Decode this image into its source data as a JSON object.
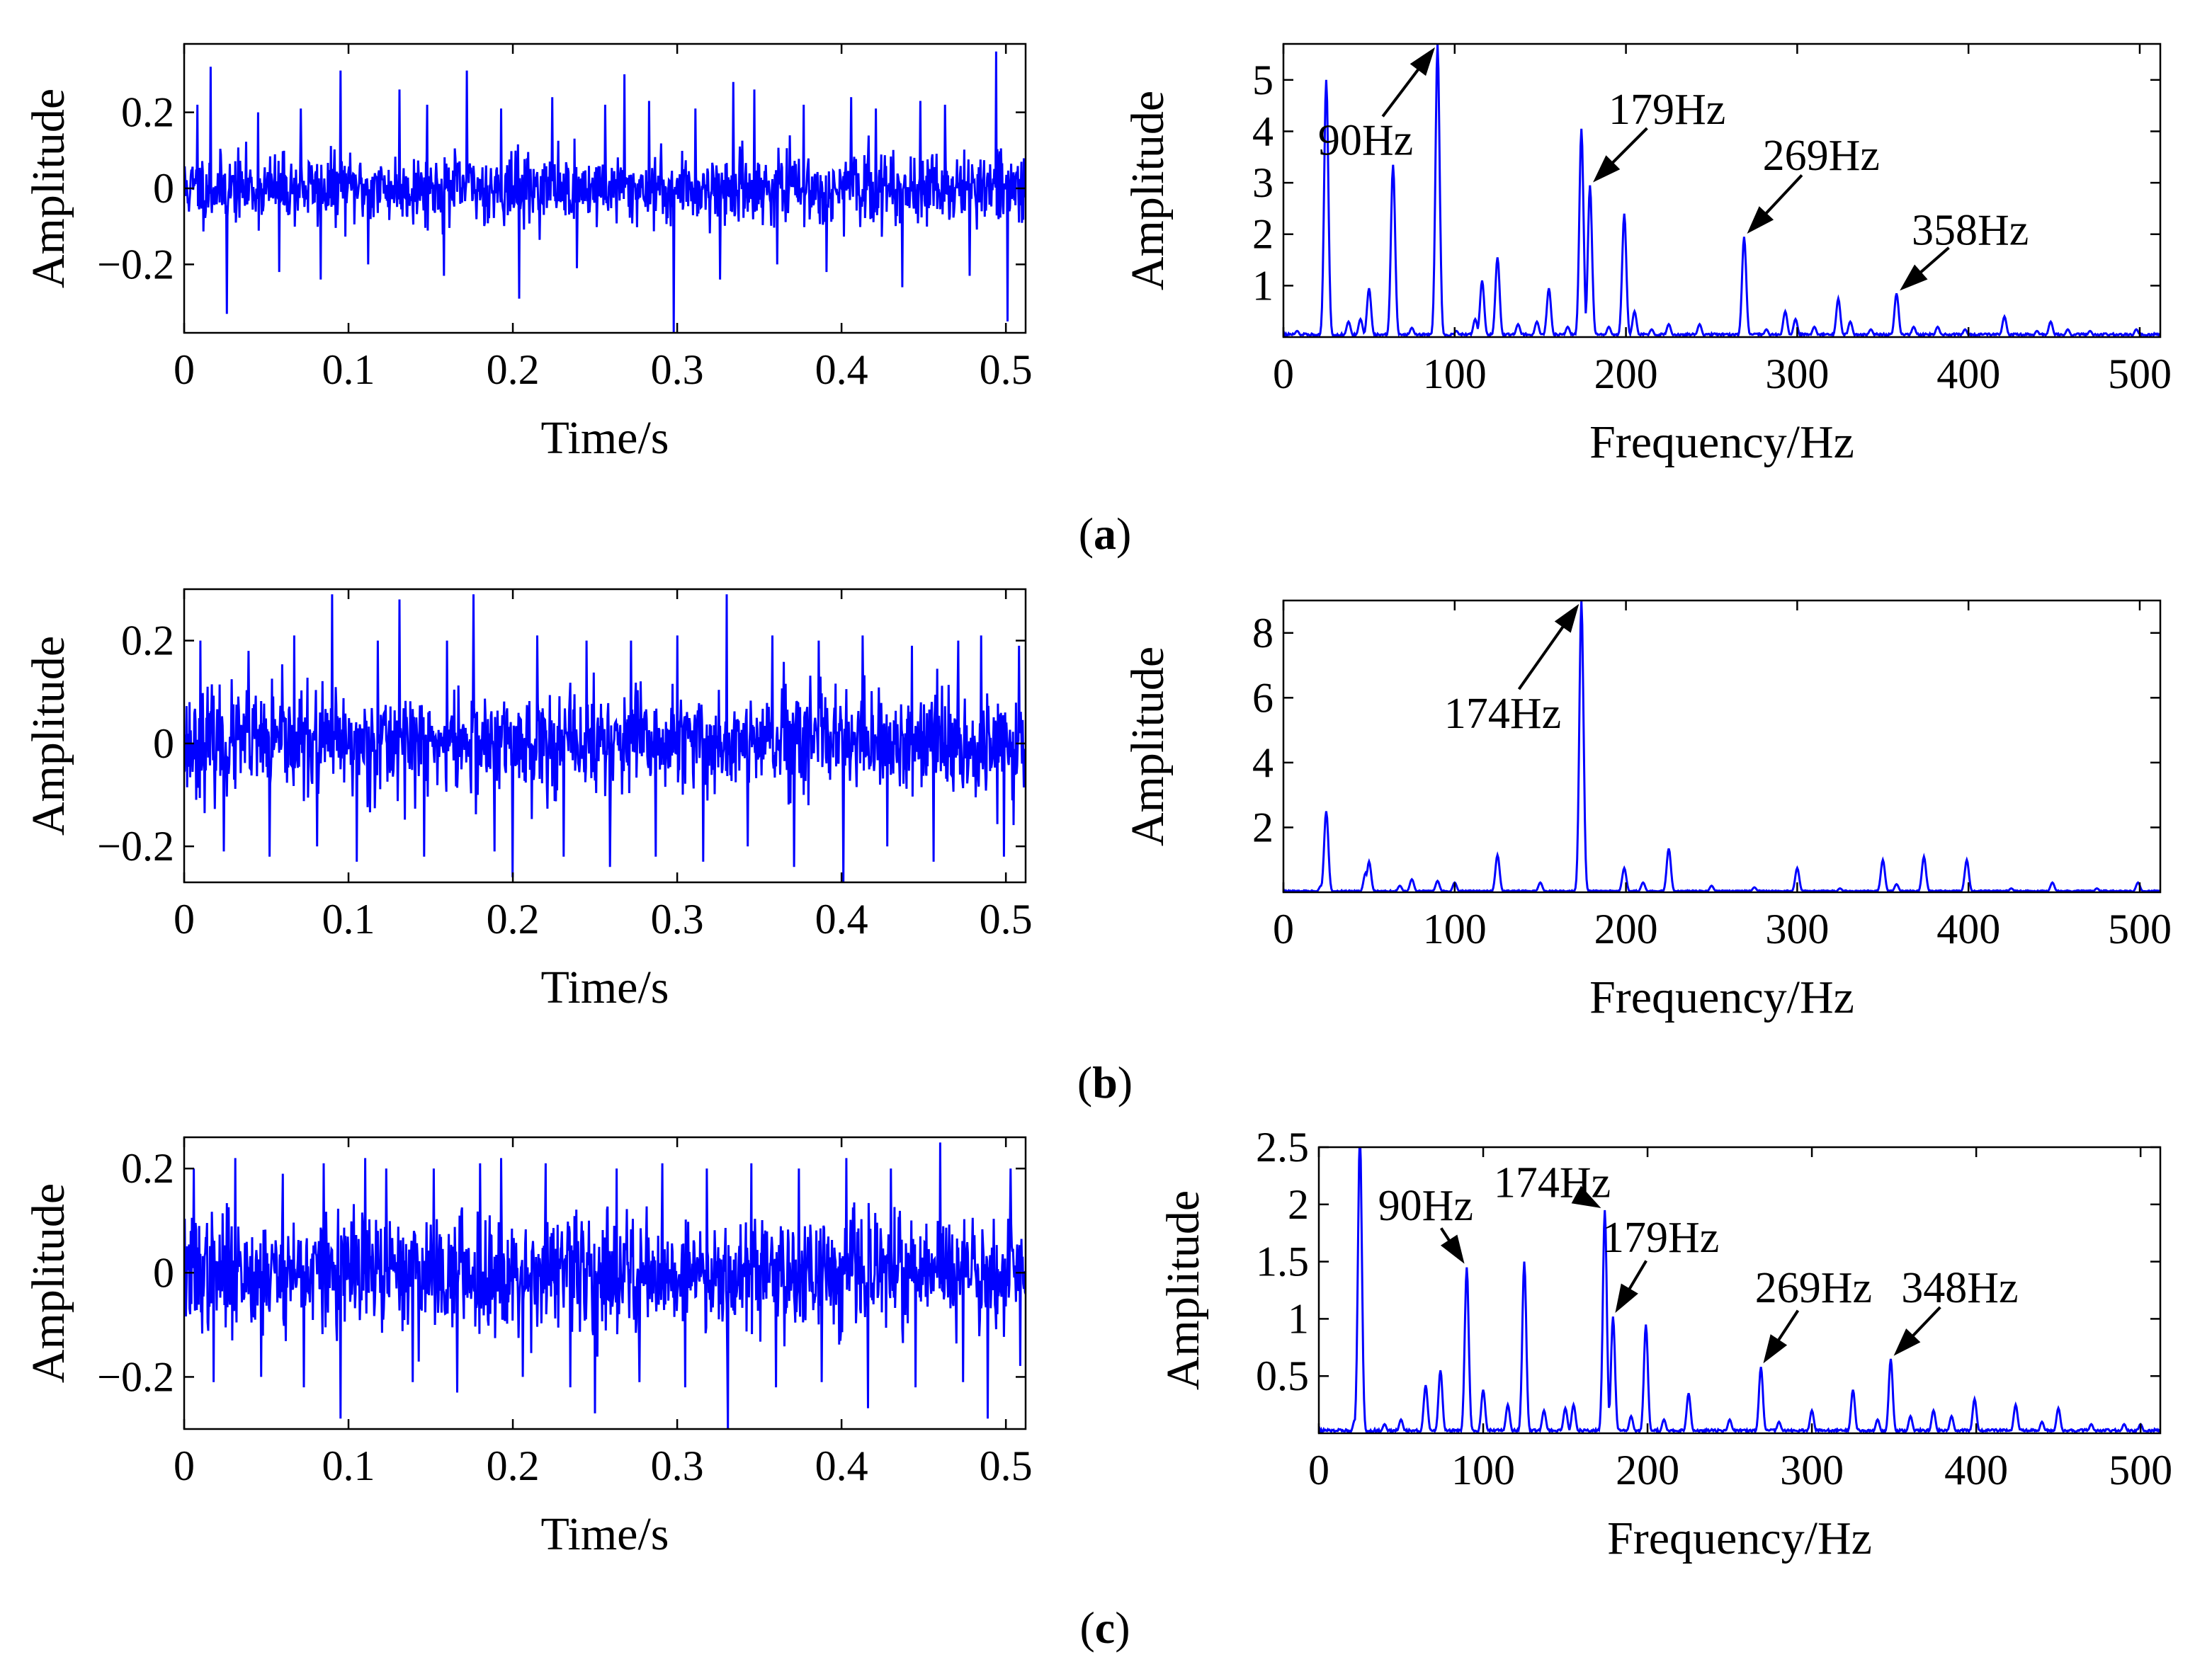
{
  "colors": {
    "signal": "#0000ff",
    "axis": "#000000"
  },
  "chart_data": [
    {
      "id": "a-time",
      "panel": "a",
      "type": "line",
      "title": "",
      "xlabel": "Time/s",
      "ylabel": "Amplitude",
      "xlim": [
        0,
        0.512
      ],
      "ylim": [
        -0.38,
        0.38
      ],
      "xticks": [
        0,
        0.1,
        0.2,
        0.3,
        0.4,
        0.5
      ],
      "xtick_labels": [
        "0",
        "0.1",
        "0.2",
        "0.3",
        "0.4",
        "0.5"
      ],
      "yticks": [
        -0.2,
        0,
        0.2
      ],
      "ytick_labels": [
        "−0.2",
        "0",
        "0.2"
      ],
      "noise": {
        "duration": 0.512,
        "n_points": 1400,
        "std": 0.045,
        "seed": 11,
        "spike_times": [
          0.008,
          0.016,
          0.026,
          0.045,
          0.058,
          0.071,
          0.083,
          0.095,
          0.112,
          0.131,
          0.148,
          0.158,
          0.172,
          0.193,
          0.204,
          0.224,
          0.239,
          0.256,
          0.268,
          0.283,
          0.298,
          0.311,
          0.326,
          0.334,
          0.347,
          0.361,
          0.377,
          0.391,
          0.406,
          0.421,
          0.437,
          0.448,
          0.463,
          0.478,
          0.494,
          0.501
        ],
        "spike_values": [
          0.22,
          0.32,
          -0.33,
          0.2,
          -0.22,
          0.21,
          -0.24,
          0.31,
          -0.2,
          0.26,
          0.22,
          -0.23,
          0.31,
          0.21,
          -0.29,
          0.24,
          -0.21,
          0.22,
          0.3,
          0.23,
          -0.38,
          0.21,
          -0.24,
          0.28,
          0.26,
          -0.2,
          0.22,
          -0.22,
          0.24,
          0.21,
          -0.26,
          0.23,
          0.22,
          -0.23,
          0.36,
          -0.35
        ]
      }
    },
    {
      "id": "a-freq",
      "panel": "a",
      "type": "line",
      "title": "",
      "xlabel": "Frequency/Hz",
      "ylabel": "Amplitude",
      "xlim": [
        0,
        512
      ],
      "ylim": [
        0,
        5.7
      ],
      "xticks": [
        0,
        100,
        200,
        300,
        400,
        500
      ],
      "xtick_labels": [
        "0",
        "100",
        "200",
        "300",
        "400",
        "500"
      ],
      "yticks": [
        1,
        2,
        3,
        4,
        5
      ],
      "ytick_labels": [
        "1",
        "2",
        "3",
        "4",
        "5"
      ],
      "spectrum": {
        "baseline": 0.06,
        "width": 1.2,
        "peaks": [
          [
            8,
            0.12
          ],
          [
            25,
            5.0
          ],
          [
            38,
            0.3
          ],
          [
            45,
            0.35
          ],
          [
            50,
            0.95
          ],
          [
            64,
            3.35
          ],
          [
            75,
            0.18
          ],
          [
            90,
            5.7
          ],
          [
            101,
            0.12
          ],
          [
            112,
            0.35
          ],
          [
            116,
            1.1
          ],
          [
            125,
            1.55
          ],
          [
            137,
            0.25
          ],
          [
            148,
            0.3
          ],
          [
            155,
            0.95
          ],
          [
            166,
            0.2
          ],
          [
            174,
            4.05
          ],
          [
            179,
            2.95
          ],
          [
            190,
            0.2
          ],
          [
            199,
            2.4
          ],
          [
            205,
            0.5
          ],
          [
            215,
            0.15
          ],
          [
            225,
            0.25
          ],
          [
            243,
            0.25
          ],
          [
            269,
            1.95
          ],
          [
            282,
            0.15
          ],
          [
            293,
            0.5
          ],
          [
            299,
            0.35
          ],
          [
            310,
            0.2
          ],
          [
            324,
            0.75
          ],
          [
            331,
            0.3
          ],
          [
            343,
            0.15
          ],
          [
            358,
            0.85
          ],
          [
            368,
            0.2
          ],
          [
            382,
            0.2
          ],
          [
            398,
            0.15
          ],
          [
            421,
            0.4
          ],
          [
            440,
            0.12
          ],
          [
            448,
            0.3
          ],
          [
            458,
            0.15
          ],
          [
            471,
            0.12
          ],
          [
            498,
            0.15
          ]
        ]
      },
      "annotations": [
        {
          "text": "90Hz",
          "x": 90,
          "y": 5.7,
          "tx": 48,
          "ty": 3.85
        },
        {
          "text": "179Hz",
          "x": 179,
          "y": 2.95,
          "tx": 224,
          "ty": 4.45
        },
        {
          "text": "269Hz",
          "x": 269,
          "y": 1.95,
          "tx": 314,
          "ty": 3.55
        },
        {
          "text": "358Hz",
          "x": 358,
          "y": 0.85,
          "tx": 401,
          "ty": 2.1
        }
      ]
    },
    {
      "id": "b-time",
      "panel": "b",
      "type": "line",
      "title": "",
      "xlabel": "Time/s",
      "ylabel": "Amplitude",
      "xlim": [
        0,
        0.512
      ],
      "ylim": [
        -0.27,
        0.3
      ],
      "xticks": [
        0,
        0.1,
        0.2,
        0.3,
        0.4,
        0.5
      ],
      "xtick_labels": [
        "0",
        "0.1",
        "0.2",
        "0.3",
        "0.4",
        "0.5"
      ],
      "yticks": [
        -0.2,
        0,
        0.2
      ],
      "ytick_labels": [
        "−0.2",
        "0",
        "0.2"
      ],
      "noise": {
        "duration": 0.512,
        "n_points": 1400,
        "std": 0.05,
        "seed": 23,
        "spike_times": [
          0.01,
          0.024,
          0.039,
          0.052,
          0.067,
          0.081,
          0.09,
          0.105,
          0.118,
          0.131,
          0.146,
          0.16,
          0.176,
          0.189,
          0.2,
          0.215,
          0.231,
          0.245,
          0.259,
          0.272,
          0.287,
          0.3,
          0.316,
          0.33,
          0.343,
          0.358,
          0.371,
          0.386,
          0.401,
          0.413,
          0.428,
          0.443,
          0.456,
          0.471,
          0.485,
          0.499,
          0.508
        ],
        "spike_values": [
          0.2,
          -0.21,
          0.18,
          -0.22,
          0.21,
          -0.2,
          0.29,
          -0.23,
          0.2,
          0.28,
          -0.22,
          0.2,
          0.29,
          -0.21,
          -0.26,
          0.21,
          -0.22,
          0.2,
          -0.24,
          0.2,
          -0.22,
          0.21,
          -0.23,
          0.29,
          -0.2,
          0.21,
          -0.24,
          0.2,
          -0.27,
          0.21,
          -0.2,
          0.19,
          -0.23,
          0.2,
          0.21,
          -0.22,
          0.19
        ]
      }
    },
    {
      "id": "b-freq",
      "panel": "b",
      "type": "line",
      "title": "",
      "xlabel": "Frequency/Hz",
      "ylabel": "Amplitude",
      "xlim": [
        0,
        512
      ],
      "ylim": [
        0,
        9
      ],
      "xticks": [
        0,
        100,
        200,
        300,
        400,
        500
      ],
      "xtick_labels": [
        "0",
        "100",
        "200",
        "300",
        "400",
        "500"
      ],
      "yticks": [
        2,
        4,
        6,
        8
      ],
      "ytick_labels": [
        "2",
        "4",
        "6",
        "8"
      ],
      "spectrum": {
        "baseline": 0.05,
        "width": 1.2,
        "peaks": [
          [
            22,
            0.2
          ],
          [
            25,
            2.5
          ],
          [
            48,
            0.6
          ],
          [
            50,
            0.95
          ],
          [
            68,
            0.2
          ],
          [
            75,
            0.4
          ],
          [
            90,
            0.35
          ],
          [
            100,
            0.3
          ],
          [
            125,
            1.15
          ],
          [
            150,
            0.3
          ],
          [
            174,
            9.0
          ],
          [
            199,
            0.75
          ],
          [
            210,
            0.3
          ],
          [
            225,
            1.35
          ],
          [
            250,
            0.2
          ],
          [
            275,
            0.15
          ],
          [
            300,
            0.75
          ],
          [
            325,
            0.12
          ],
          [
            350,
            1.0
          ],
          [
            358,
            0.25
          ],
          [
            374,
            1.1
          ],
          [
            399,
            1.0
          ],
          [
            425,
            0.12
          ],
          [
            449,
            0.3
          ],
          [
            475,
            0.12
          ],
          [
            499,
            0.3
          ]
        ]
      },
      "annotations": [
        {
          "text": "174Hz",
          "x": 174,
          "y": 9.0,
          "tx": 128,
          "ty": 5.55
        }
      ]
    },
    {
      "id": "c-time",
      "panel": "c",
      "type": "line",
      "title": "",
      "xlabel": "Time/s",
      "ylabel": "Amplitude",
      "xlim": [
        0,
        0.512
      ],
      "ylim": [
        -0.3,
        0.26
      ],
      "xticks": [
        0,
        0.1,
        0.2,
        0.3,
        0.4,
        0.5
      ],
      "xtick_labels": [
        "0",
        "0.1",
        "0.2",
        "0.3",
        "0.4",
        "0.5"
      ],
      "yticks": [
        -0.2,
        0,
        0.2
      ],
      "ytick_labels": [
        "−0.2",
        "0",
        "0.2"
      ],
      "noise": {
        "duration": 0.512,
        "n_points": 1400,
        "std": 0.055,
        "seed": 37,
        "spike_times": [
          0.006,
          0.018,
          0.031,
          0.047,
          0.06,
          0.073,
          0.085,
          0.095,
          0.11,
          0.123,
          0.139,
          0.152,
          0.166,
          0.18,
          0.193,
          0.206,
          0.22,
          0.235,
          0.25,
          0.263,
          0.277,
          0.291,
          0.305,
          0.318,
          0.331,
          0.345,
          0.36,
          0.374,
          0.388,
          0.403,
          0.416,
          0.43,
          0.445,
          0.46,
          0.474,
          0.489,
          0.503
        ],
        "spike_values": [
          0.2,
          -0.21,
          0.22,
          -0.2,
          0.19,
          -0.22,
          0.21,
          -0.28,
          0.22,
          0.2,
          -0.21,
          0.2,
          -0.23,
          0.21,
          0.22,
          -0.2,
          0.21,
          -0.22,
          -0.27,
          0.2,
          -0.21,
          0.21,
          -0.22,
          0.2,
          -0.3,
          0.21,
          -0.22,
          0.2,
          -0.21,
          0.22,
          -0.26,
          0.2,
          -0.22,
          0.25,
          -0.21,
          -0.28,
          0.2
        ]
      }
    },
    {
      "id": "c-freq",
      "panel": "c",
      "type": "line",
      "title": "",
      "xlabel": "Frequency/Hz",
      "ylabel": "Amplitude",
      "xlim": [
        0,
        512
      ],
      "ylim": [
        0,
        2.5
      ],
      "xticks": [
        0,
        100,
        200,
        300,
        400,
        500
      ],
      "xtick_labels": [
        "0",
        "100",
        "200",
        "300",
        "400",
        "500"
      ],
      "yticks": [
        0.5,
        1,
        1.5,
        2,
        2.5
      ],
      "ytick_labels": [
        "0.5",
        "1",
        "1.5",
        "2",
        "2.5"
      ],
      "spectrum": {
        "baseline": 0.03,
        "width": 1.2,
        "peaks": [
          [
            22,
            0.12
          ],
          [
            25,
            2.6
          ],
          [
            40,
            0.08
          ],
          [
            50,
            0.12
          ],
          [
            65,
            0.42
          ],
          [
            74,
            0.55
          ],
          [
            90,
            1.45
          ],
          [
            100,
            0.38
          ],
          [
            115,
            0.25
          ],
          [
            125,
            1.5
          ],
          [
            137,
            0.2
          ],
          [
            150,
            0.22
          ],
          [
            155,
            0.25
          ],
          [
            174,
            1.95
          ],
          [
            179,
            1.02
          ],
          [
            190,
            0.15
          ],
          [
            199,
            0.95
          ],
          [
            210,
            0.12
          ],
          [
            225,
            0.35
          ],
          [
            250,
            0.12
          ],
          [
            269,
            0.58
          ],
          [
            280,
            0.1
          ],
          [
            300,
            0.2
          ],
          [
            325,
            0.38
          ],
          [
            340,
            0.12
          ],
          [
            348,
            0.65
          ],
          [
            360,
            0.15
          ],
          [
            374,
            0.2
          ],
          [
            385,
            0.15
          ],
          [
            399,
            0.3
          ],
          [
            424,
            0.25
          ],
          [
            440,
            0.1
          ],
          [
            450,
            0.22
          ],
          [
            470,
            0.08
          ],
          [
            490,
            0.08
          ],
          [
            500,
            0.08
          ]
        ]
      },
      "annotations": [
        {
          "text": "90Hz",
          "x": 90,
          "y": 1.45,
          "tx": 65,
          "ty": 2.0
        },
        {
          "text": "174Hz",
          "x": 174,
          "y": 1.95,
          "tx": 142,
          "ty": 2.2
        },
        {
          "text": "179Hz",
          "x": 179,
          "y": 1.02,
          "tx": 208,
          "ty": 1.72
        },
        {
          "text": "269Hz",
          "x": 269,
          "y": 0.58,
          "tx": 301,
          "ty": 1.28
        },
        {
          "text": "348Hz",
          "x": 348,
          "y": 0.65,
          "tx": 390,
          "ty": 1.28
        }
      ]
    }
  ],
  "panel_labels": [
    {
      "id": "a",
      "text": "a"
    },
    {
      "id": "b",
      "text": "b"
    },
    {
      "id": "c",
      "text": "c"
    }
  ]
}
